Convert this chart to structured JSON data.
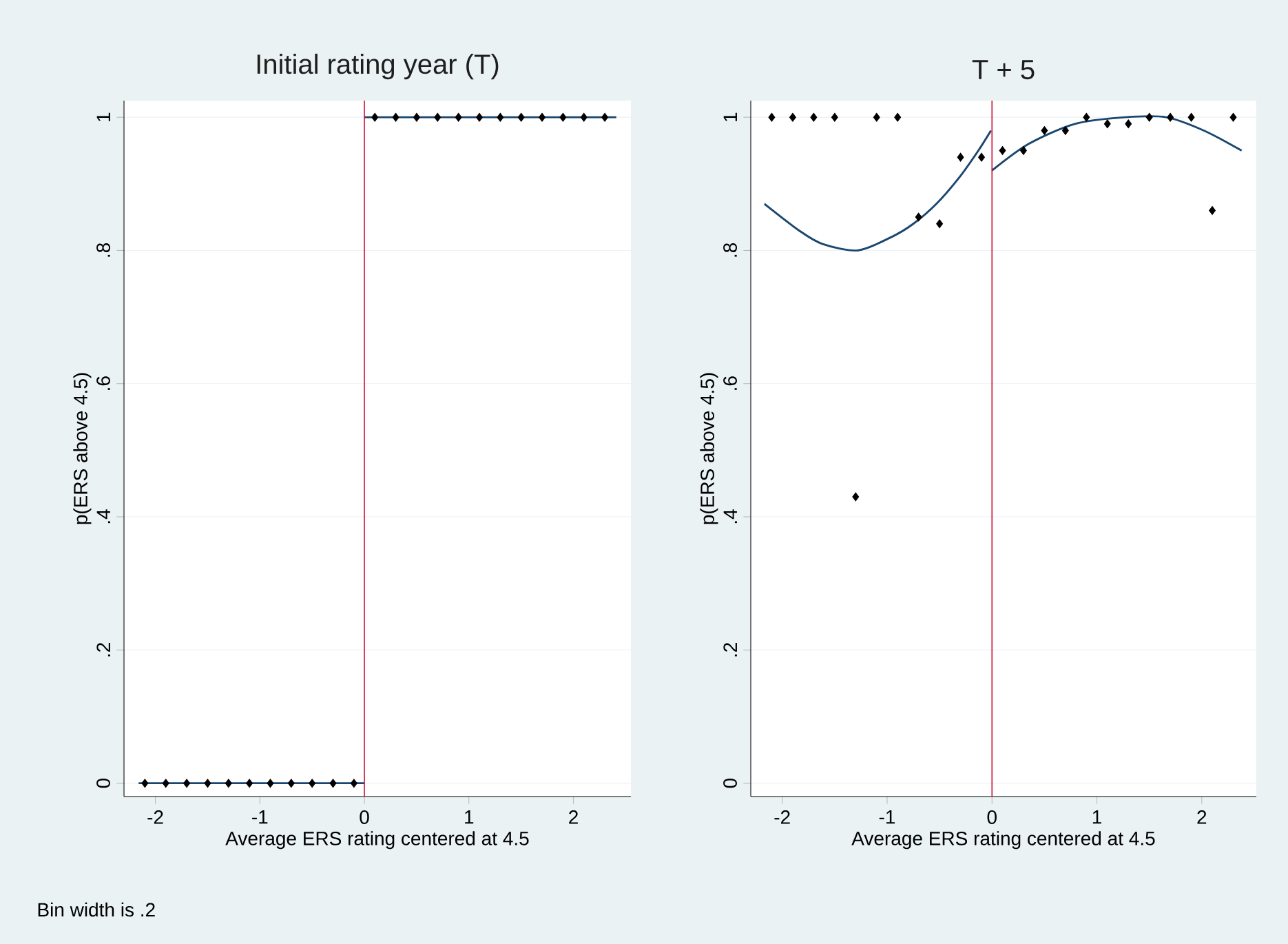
{
  "chart_data": [
    {
      "type": "scatter",
      "title": "Initial rating year (T)",
      "xlabel": "Average ERS rating centered at 4.5",
      "ylabel": "p(ERS above 4.5)",
      "xlim": [
        -2.3,
        2.55
      ],
      "ylim": [
        -0.02,
        1.025
      ],
      "xticks": [
        -2,
        -1,
        0,
        1,
        2
      ],
      "yticks": [
        0,
        {
          "value": 0.2,
          "label": ".2"
        },
        {
          "value": 0.4,
          "label": ".4"
        },
        {
          "value": 0.6,
          "label": ".6"
        },
        {
          "value": 0.8,
          "label": ".8"
        },
        1
      ],
      "grid": "y",
      "ref_lines": [
        {
          "axis": "x",
          "value": 0,
          "color": "#d0103a"
        }
      ],
      "annotations": [
        "Bin width is .2"
      ],
      "series": [
        {
          "color": "#000000",
          "marker": "diamond",
          "x": [
            -2.1,
            -1.9,
            -1.7,
            -1.5,
            -1.3,
            -1.1,
            -0.9,
            -0.7,
            -0.5,
            -0.3,
            -0.1,
            0.1,
            0.3,
            0.5,
            0.7,
            0.9,
            1.1,
            1.3,
            1.5,
            1.7,
            1.9,
            2.1,
            2.3
          ],
          "values": [
            0,
            0,
            0,
            0,
            0,
            0,
            0,
            0,
            0,
            0,
            0,
            1,
            1,
            1,
            1,
            1,
            1,
            1,
            1,
            1,
            1,
            1,
            1
          ]
        },
        {
          "type": "line",
          "color": "#1a476f",
          "x": [
            -2.16,
            0
          ],
          "values": [
            0,
            0
          ]
        },
        {
          "type": "line",
          "color": "#1a476f",
          "x": [
            0,
            2.41
          ],
          "values": [
            1,
            1
          ]
        }
      ]
    },
    {
      "type": "scatter",
      "title": "T + 5",
      "xlabel": "Average ERS rating centered at 4.5",
      "ylabel": "p(ERS above 4.5)",
      "xlim": [
        -2.3,
        2.52
      ],
      "ylim": [
        -0.02,
        1.025
      ],
      "xticks": [
        -2,
        -1,
        0,
        1,
        2
      ],
      "yticks": [
        0,
        {
          "value": 0.2,
          "label": ".2"
        },
        {
          "value": 0.4,
          "label": ".4"
        },
        {
          "value": 0.6,
          "label": ".6"
        },
        {
          "value": 0.8,
          "label": ".8"
        },
        1
      ],
      "grid": "y",
      "ref_lines": [
        {
          "axis": "x",
          "value": 0,
          "color": "#d0103a"
        }
      ],
      "series": [
        {
          "color": "#000000",
          "marker": "diamond",
          "x": [
            -2.1,
            -1.9,
            -1.7,
            -1.5,
            -1.3,
            -1.1,
            -0.9,
            -0.7,
            -0.5,
            -0.3,
            -0.1,
            0.1,
            0.3,
            0.5,
            0.7,
            0.9,
            1.1,
            1.3,
            1.5,
            1.7,
            1.9,
            2.1,
            2.3
          ],
          "values": [
            1,
            1,
            1,
            1,
            0.43,
            1,
            1,
            0.85,
            0.84,
            0.94,
            0.94,
            0.95,
            0.95,
            0.98,
            0.98,
            1,
            0.99,
            0.99,
            1,
            1,
            1,
            0.86,
            1
          ]
        },
        {
          "type": "line",
          "color": "#1a476f",
          "x": [
            -2.17,
            -1.84,
            -1.62,
            -1.28,
            -0.96,
            -0.75,
            -0.53,
            -0.31,
            -0.13,
            -0.01
          ],
          "values": [
            0.87,
            0.83,
            0.81,
            0.8,
            0.82,
            0.84,
            0.87,
            0.91,
            0.95,
            0.98
          ]
        },
        {
          "type": "line",
          "color": "#1a476f",
          "x": [
            0,
            0.35,
            0.79,
            1.27,
            1.66,
            2.02,
            2.38
          ],
          "values": [
            0.92,
            0.96,
            0.99,
            1.0,
            1.0,
            0.98,
            0.95
          ]
        }
      ]
    }
  ]
}
